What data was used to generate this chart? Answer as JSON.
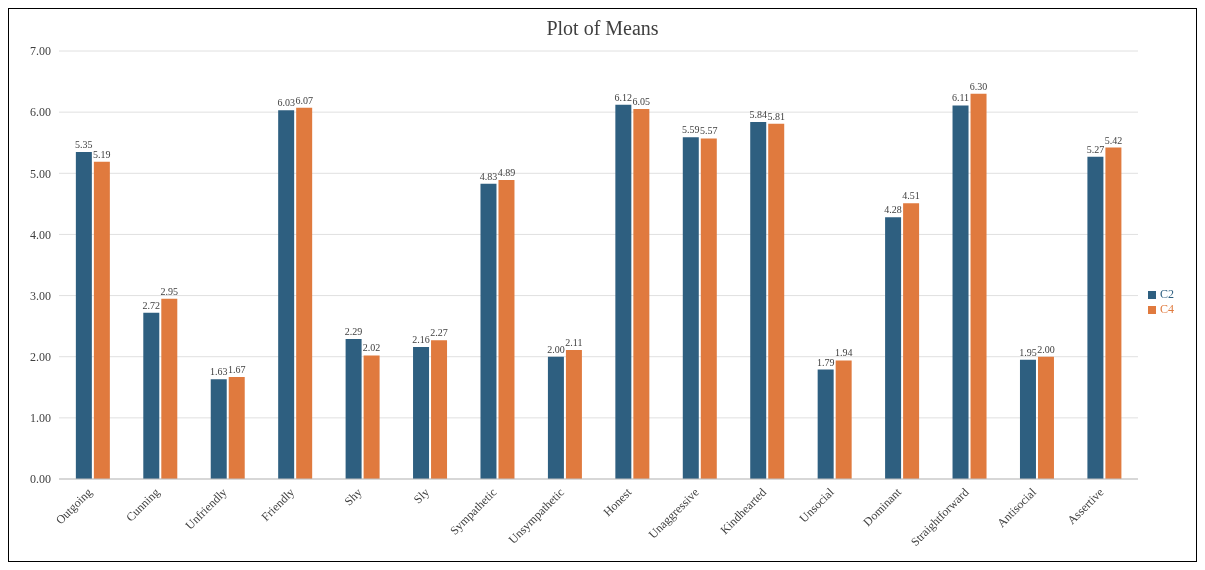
{
  "chart_data": {
    "type": "bar",
    "title": "Plot of Means",
    "categories": [
      "Outgoing",
      "Cunning",
      "Unfriendly",
      "Friendly",
      "Shy",
      "Sly",
      "Sympathetic",
      "Unsympathetic",
      "Honest",
      "Unaggressive",
      "Kindhearted",
      "Unsocial",
      "Dominant",
      "Straightforward",
      "Antisocial",
      "Assertive"
    ],
    "series": [
      {
        "name": "C2",
        "color": "#2e5f80",
        "values": [
          5.35,
          2.72,
          1.63,
          6.03,
          2.29,
          2.16,
          4.83,
          2.0,
          6.12,
          5.59,
          5.84,
          1.79,
          4.28,
          6.11,
          1.95,
          5.27
        ],
        "value_labels": [
          "5.35",
          "2.72",
          "1.63",
          "6.03",
          "2.29",
          "2.16",
          "4.83",
          "2.00",
          "6.12",
          "5.59",
          "5.84",
          "1.79",
          "4.28",
          "6.11",
          "1.95",
          "5.27"
        ]
      },
      {
        "name": "C4",
        "color": "#e07a3e",
        "values": [
          5.19,
          2.95,
          1.67,
          6.07,
          2.02,
          2.27,
          4.89,
          2.11,
          6.05,
          5.57,
          5.81,
          1.94,
          4.51,
          6.3,
          2.0,
          5.42
        ],
        "value_labels": [
          "5.19",
          "2.95",
          "1.67",
          "6.07",
          "2.02",
          "2.27",
          "4.89",
          "2.11",
          "6.05",
          "5.57",
          "5.81",
          "1.94",
          "4.51",
          "6.30",
          "2.00",
          "5.42"
        ]
      }
    ],
    "ylim": [
      0,
      7
    ],
    "yticks": [
      {
        "value": 0,
        "label": "0.00"
      },
      {
        "value": 1,
        "label": "1.00"
      },
      {
        "value": 2,
        "label": "2.00"
      },
      {
        "value": 3,
        "label": "3.00"
      },
      {
        "value": 4,
        "label": "4.00"
      },
      {
        "value": 5,
        "label": "5.00"
      },
      {
        "value": 6,
        "label": "6.00"
      },
      {
        "value": 7,
        "label": "7.00"
      }
    ],
    "grid": "y",
    "legend": "right"
  }
}
